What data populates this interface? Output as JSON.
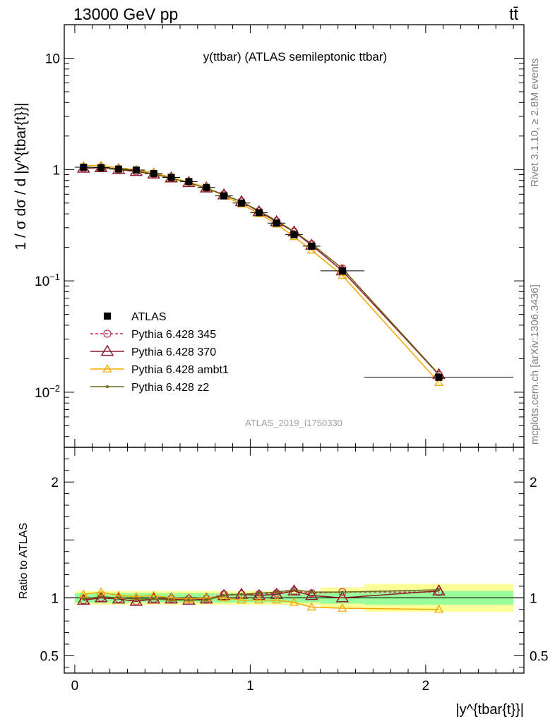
{
  "header": {
    "left": "13000 GeV pp",
    "right": "tt̄"
  },
  "side_labels": {
    "rivet": "Rivet 3.1.10, ≥ 2.8M events",
    "mcplots": "mcplots.cern.ch [arXiv:1306.3436]"
  },
  "chart_data": {
    "type": "line",
    "title": "y(ttbar) (ATLAS semileptonic ttbar)",
    "analysis_tag": "ATLAS_2019_I1750330",
    "xlabel": "|y^{tbar{t}}|",
    "ylabel_top": "1 / σ dσ / d |y^{tbar{t}}|",
    "ylabel_bottom": "Ratio to ATLAS",
    "xlim": [
      -0.06,
      2.56
    ],
    "ylim_top": [
      0.0032,
      20
    ],
    "ylim_bottom": [
      0.35,
      2.3
    ],
    "yscale_top": "log",
    "legend_placement": "lower-left",
    "x_ticks": [
      0,
      1,
      2
    ],
    "x_tick_labels": [
      "0",
      "1",
      "2"
    ],
    "y_ticks_top": [
      {
        "value": 10,
        "base": "10",
        "exp": ""
      },
      {
        "value": 1,
        "base": "1",
        "exp": ""
      },
      {
        "value": 0.1,
        "base": "10",
        "exp": "−1"
      },
      {
        "value": 0.01,
        "base": "10",
        "exp": "−2"
      }
    ],
    "y_ticks_bottom": [
      {
        "value": 2,
        "label": "2"
      },
      {
        "value": 1,
        "label": "1"
      },
      {
        "value": 0.5,
        "label": "0.5"
      }
    ],
    "x": [
      0.05,
      0.15,
      0.25,
      0.35,
      0.45,
      0.55,
      0.65,
      0.75,
      0.85,
      0.95,
      1.05,
      1.15,
      1.25,
      1.35,
      1.525,
      2.075
    ],
    "bins": [
      [
        0,
        0.1
      ],
      [
        0.1,
        0.2
      ],
      [
        0.2,
        0.3
      ],
      [
        0.3,
        0.4
      ],
      [
        0.4,
        0.5
      ],
      [
        0.5,
        0.6
      ],
      [
        0.6,
        0.7
      ],
      [
        0.7,
        0.8
      ],
      [
        0.8,
        0.9
      ],
      [
        0.9,
        1.0
      ],
      [
        1.0,
        1.1
      ],
      [
        1.1,
        1.2
      ],
      [
        1.2,
        1.3
      ],
      [
        1.3,
        1.4
      ],
      [
        1.4,
        1.65
      ],
      [
        1.65,
        2.5
      ]
    ],
    "data": {
      "name": "ATLAS",
      "values": [
        1.05,
        1.04,
        1.01,
        0.99,
        0.92,
        0.85,
        0.78,
        0.69,
        0.58,
        0.5,
        0.41,
        0.33,
        0.26,
        0.205,
        0.123,
        0.0136
      ],
      "band_inner": [
        0.04,
        0.04,
        0.04,
        0.04,
        0.04,
        0.04,
        0.04,
        0.04,
        0.04,
        0.04,
        0.04,
        0.04,
        0.04,
        0.04,
        0.05,
        0.06
      ],
      "band_outer": [
        0.06,
        0.06,
        0.06,
        0.06,
        0.06,
        0.06,
        0.06,
        0.06,
        0.06,
        0.06,
        0.06,
        0.06,
        0.06,
        0.06,
        0.09,
        0.12
      ]
    },
    "series": [
      {
        "name": "Pythia 6.428 345",
        "color": "#c8325a",
        "dash": "4,3",
        "marker": "circle",
        "ratio": [
          0.98,
          1.0,
          0.99,
          0.97,
          0.99,
          0.99,
          0.99,
          0.99,
          1.03,
          1.03,
          1.03,
          1.04,
          1.06,
          1.04,
          1.05,
          1.05
        ]
      },
      {
        "name": "Pythia 6.428 370",
        "color": "#8b1a2b",
        "dash": "",
        "marker": "triangle-open-large",
        "ratio": [
          0.98,
          1.0,
          0.99,
          0.97,
          0.99,
          0.99,
          0.98,
          0.99,
          1.02,
          1.03,
          1.02,
          1.03,
          1.06,
          1.02,
          1.0,
          1.06
        ]
      },
      {
        "name": "Pythia 6.428 ambt1",
        "color": "#f5a800",
        "dash": "",
        "marker": "triangle-open",
        "ratio": [
          1.03,
          1.05,
          1.02,
          1.01,
          1.02,
          1.0,
          0.99,
          1.0,
          1.0,
          0.98,
          0.98,
          0.98,
          0.96,
          0.92,
          0.91,
          0.9
        ]
      },
      {
        "name": "Pythia 6.428 z2",
        "color": "#6b6b1a",
        "dash": "",
        "marker": "dot",
        "ratio": [
          0.99,
          1.01,
          1.0,
          0.99,
          0.99,
          0.98,
          0.98,
          0.98,
          1.02,
          1.03,
          1.04,
          1.05,
          1.07,
          1.05,
          1.05,
          1.07
        ]
      }
    ]
  }
}
